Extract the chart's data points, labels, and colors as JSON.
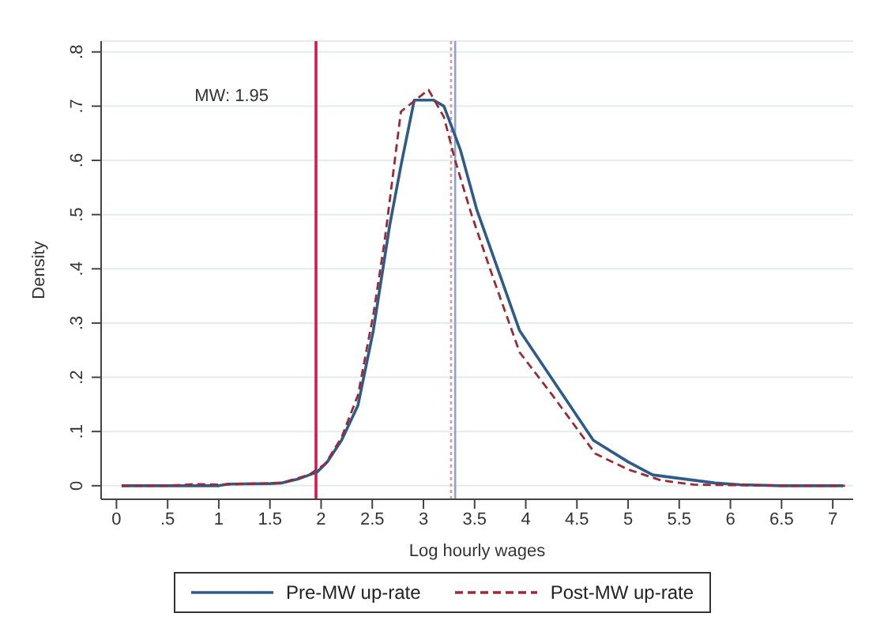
{
  "chart_data": {
    "type": "line",
    "xlabel": "Log hourly wages",
    "ylabel": "Density",
    "xlim": [
      -0.15,
      7.2
    ],
    "ylim": [
      -0.025,
      0.82
    ],
    "xticks": [
      0,
      {
        "value": 0.5,
        "label": ".5"
      },
      1,
      {
        "value": 1.5,
        "label": "1.5"
      },
      2,
      {
        "value": 2.5,
        "label": "2.5"
      },
      3,
      {
        "value": 3.5,
        "label": "3.5"
      },
      4,
      {
        "value": 4.5,
        "label": "4.5"
      },
      5,
      {
        "value": 5.5,
        "label": "5.5"
      },
      6,
      {
        "value": 6.5,
        "label": "6.5"
      },
      7
    ],
    "yticks": [
      0,
      {
        "value": 0.1,
        "label": ".1"
      },
      {
        "value": 0.2,
        "label": ".2"
      },
      {
        "value": 0.3,
        "label": ".3"
      },
      {
        "value": 0.4,
        "label": ".4"
      },
      {
        "value": 0.5,
        "label": ".5"
      },
      {
        "value": 0.6,
        "label": ".6"
      },
      {
        "value": 0.7,
        "label": ".7"
      },
      {
        "value": 0.8,
        "label": ".8"
      }
    ],
    "grid": "y",
    "legend": "bottom",
    "marker": "none",
    "series": [
      {
        "name": "Pre-MW up-rate",
        "color": "#2e5b88",
        "line_style": "solid",
        "x": [
          0.05,
          0.5,
          1.0,
          1.09,
          1.5,
          1.61,
          1.77,
          1.96,
          2.06,
          2.2,
          2.36,
          2.51,
          2.67,
          2.78,
          2.91,
          3.1,
          3.2,
          3.3,
          3.36,
          3.52,
          3.94,
          4.66,
          5.0,
          5.24,
          5.85,
          6.09,
          6.5,
          7.1
        ],
        "values": [
          0,
          0,
          0,
          0.003,
          0.004,
          0.005,
          0.012,
          0.025,
          0.044,
          0.084,
          0.148,
          0.286,
          0.48,
          0.59,
          0.711,
          0.711,
          0.7,
          0.65,
          0.62,
          0.51,
          0.286,
          0.084,
          0.044,
          0.02,
          0.005,
          0.002,
          0,
          0
        ]
      },
      {
        "name": "Post-MW up-rate",
        "color": "#9b2a36",
        "line_style": "dashed",
        "x": [
          0.05,
          0.5,
          0.77,
          1.0,
          1.61,
          1.88,
          2.04,
          2.2,
          2.36,
          2.51,
          2.62,
          2.78,
          2.94,
          3.05,
          3.2,
          3.31,
          3.47,
          3.68,
          3.94,
          4.26,
          4.68,
          5.0,
          5.32,
          5.64,
          6.5,
          7.12
        ],
        "values": [
          0,
          0,
          0.003,
          0.002,
          0.005,
          0.02,
          0.04,
          0.089,
          0.167,
          0.315,
          0.45,
          0.69,
          0.714,
          0.73,
          0.68,
          0.6,
          0.5,
          0.384,
          0.246,
          0.167,
          0.059,
          0.03,
          0.01,
          0.002,
          0,
          0
        ]
      }
    ],
    "ref_lines": [
      {
        "axis": "x",
        "value": 1.95,
        "label": "MW: 1.95",
        "color": "#d6184a",
        "line_style": "solid"
      },
      {
        "axis": "x",
        "value": 3.31,
        "label": null,
        "color": "#8fa3c8",
        "line_style": "solid"
      },
      {
        "axis": "x",
        "value": 3.27,
        "label": null,
        "color": "#d59aa8",
        "line_style": "dotted"
      }
    ]
  }
}
